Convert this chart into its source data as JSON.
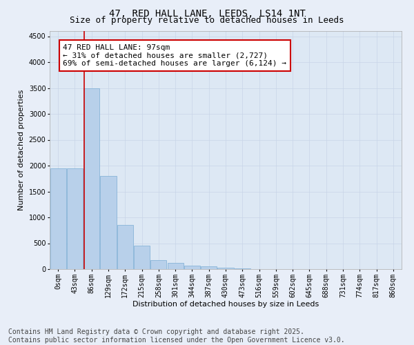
{
  "title_line1": "47, RED HALL LANE, LEEDS, LS14 1NT",
  "title_line2": "Size of property relative to detached houses in Leeds",
  "xlabel": "Distribution of detached houses by size in Leeds",
  "ylabel": "Number of detached properties",
  "bar_color": "#b8d0ea",
  "bar_edge_color": "#7aacd4",
  "categories": [
    "0sqm",
    "43sqm",
    "86sqm",
    "129sqm",
    "172sqm",
    "215sqm",
    "258sqm",
    "301sqm",
    "344sqm",
    "387sqm",
    "430sqm",
    "473sqm",
    "516sqm",
    "559sqm",
    "602sqm",
    "645sqm",
    "688sqm",
    "731sqm",
    "774sqm",
    "817sqm",
    "860sqm"
  ],
  "values": [
    1950,
    1950,
    3500,
    1800,
    850,
    450,
    175,
    120,
    65,
    50,
    30,
    10,
    5,
    3,
    2,
    1,
    1,
    0,
    0,
    0,
    0
  ],
  "ylim": [
    0,
    4600
  ],
  "yticks": [
    0,
    500,
    1000,
    1500,
    2000,
    2500,
    3000,
    3500,
    4000,
    4500
  ],
  "annotation_text": "47 RED HALL LANE: 97sqm\n← 31% of detached houses are smaller (2,727)\n69% of semi-detached houses are larger (6,124) →",
  "vline_index": 2,
  "vline_color": "#cc0000",
  "grid_color": "#c8d4e8",
  "background_color": "#dde8f4",
  "fig_background_color": "#e8eef8",
  "footer_line1": "Contains HM Land Registry data © Crown copyright and database right 2025.",
  "footer_line2": "Contains public sector information licensed under the Open Government Licence v3.0.",
  "title_fontsize": 10,
  "subtitle_fontsize": 9,
  "tick_fontsize": 7,
  "ylabel_fontsize": 8,
  "xlabel_fontsize": 8,
  "annotation_fontsize": 8,
  "footer_fontsize": 7
}
